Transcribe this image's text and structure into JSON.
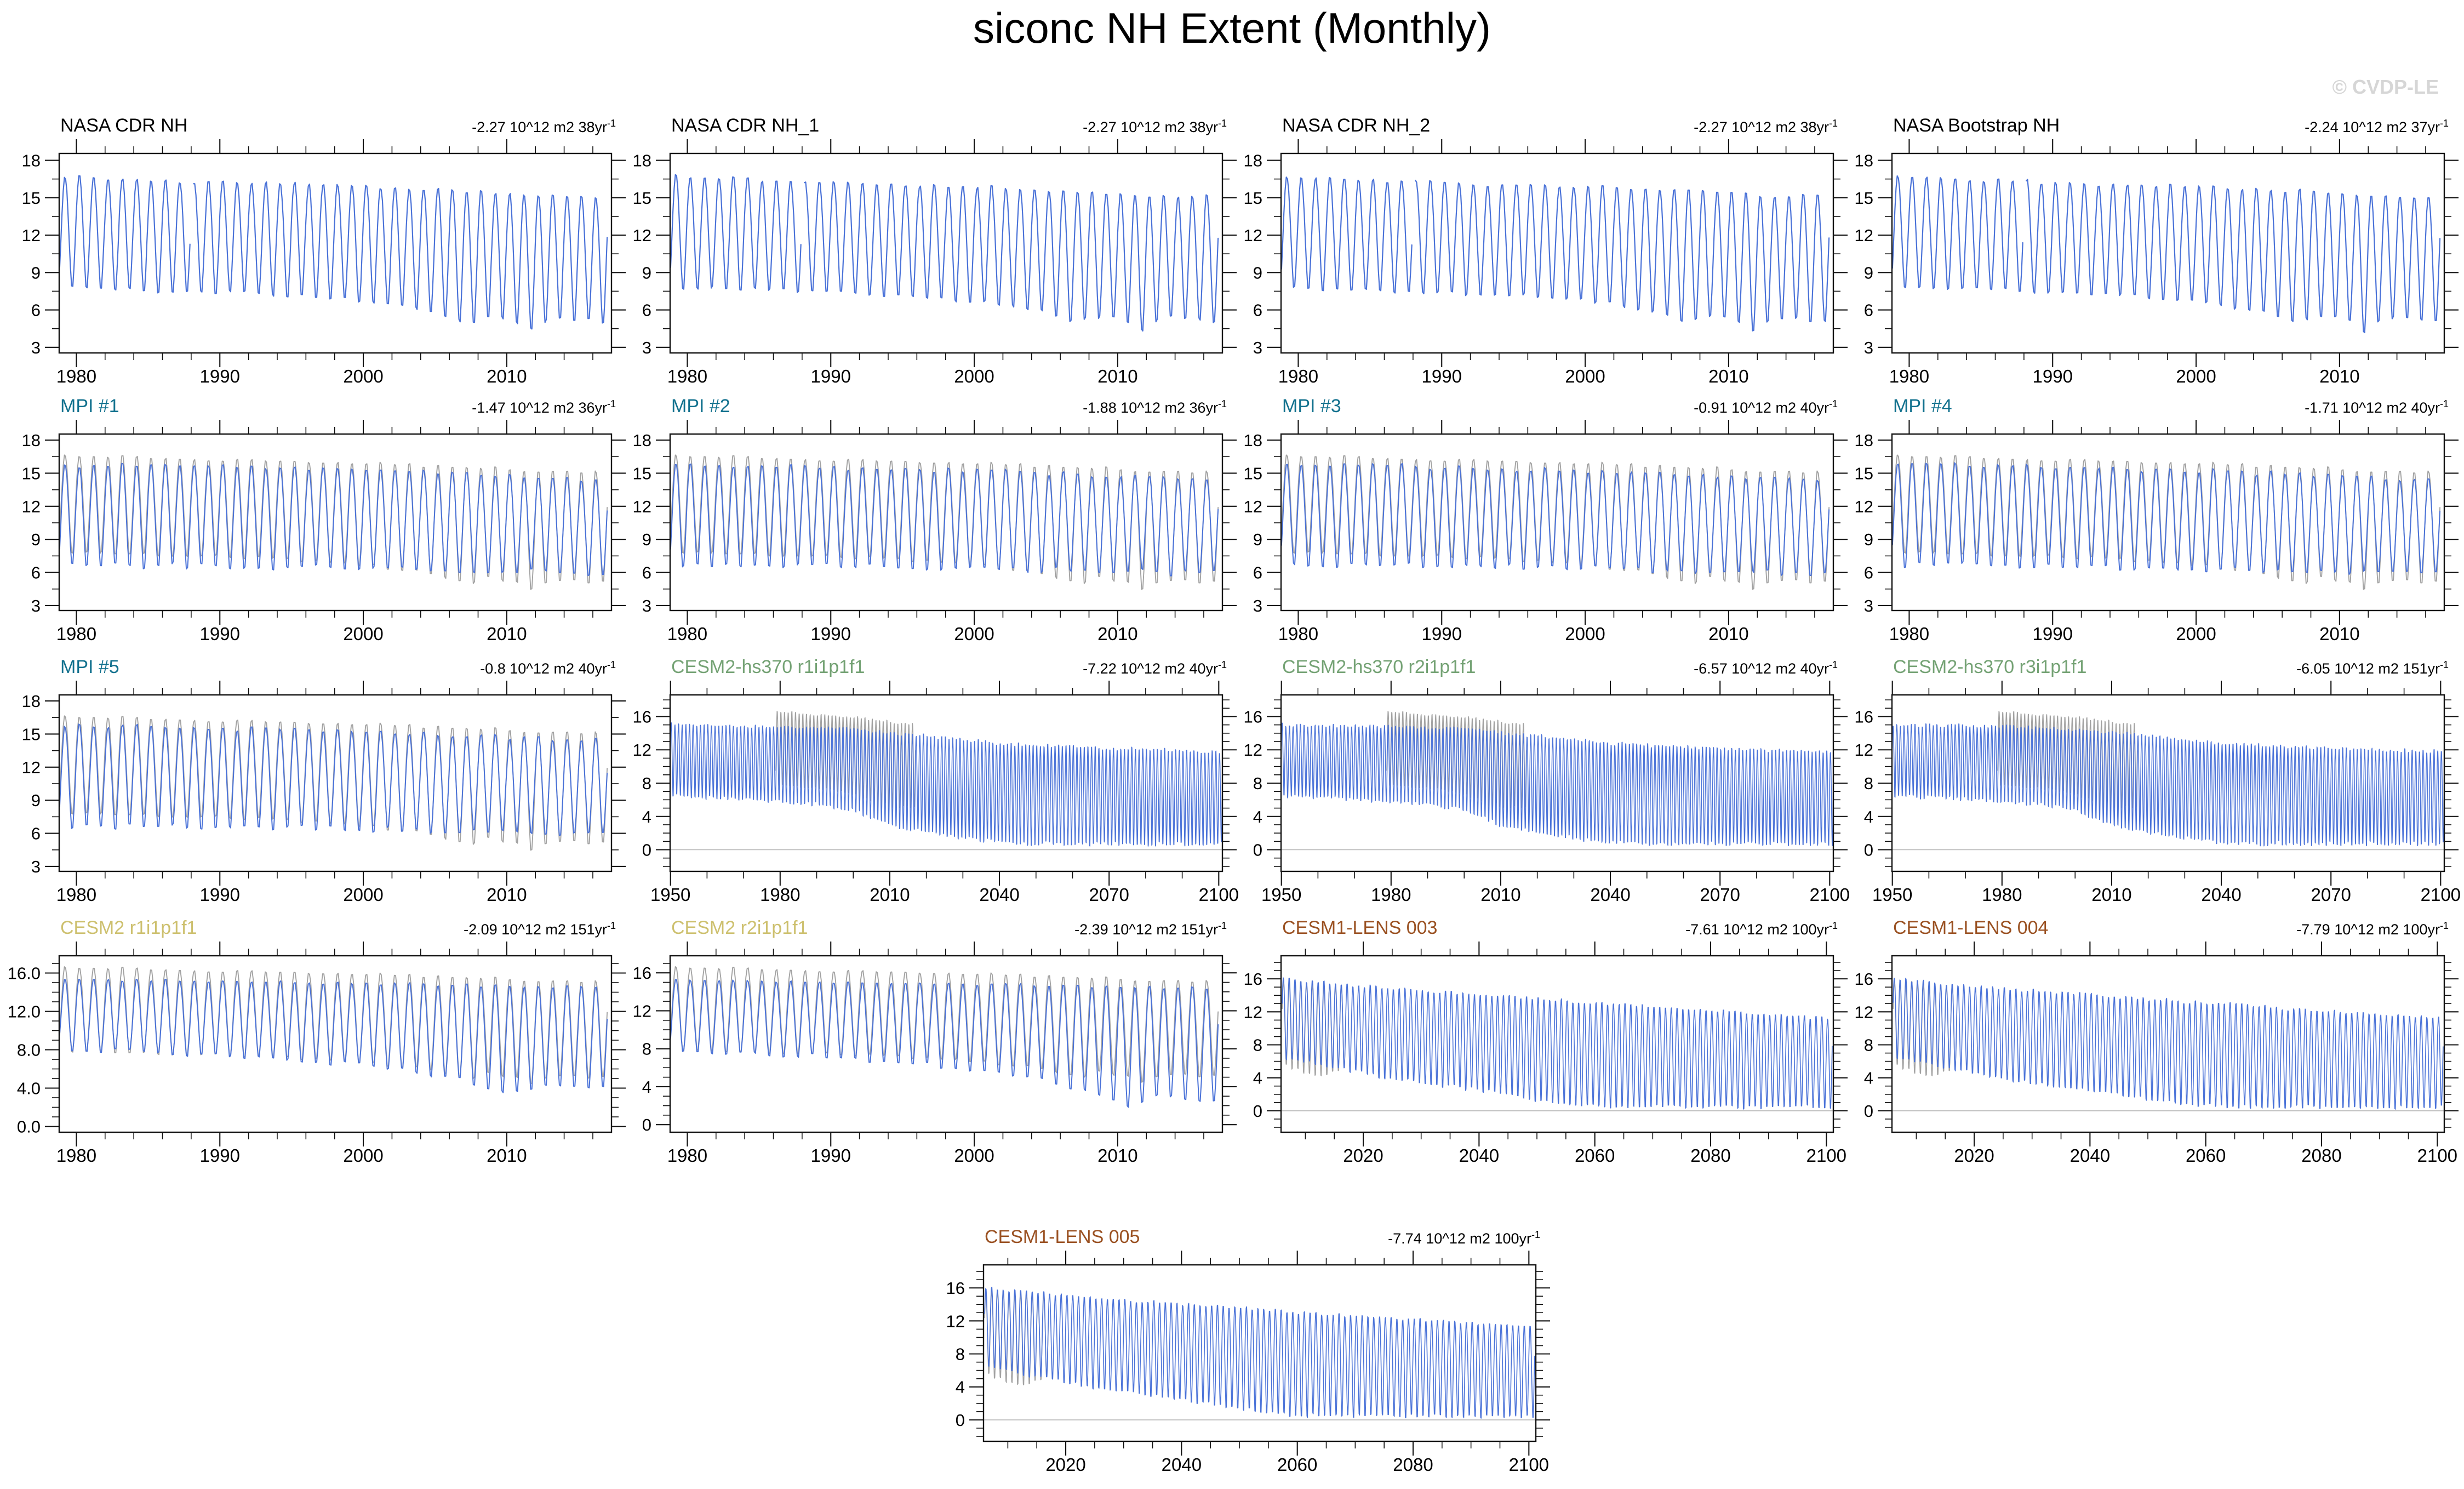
{
  "page": {
    "title": "siconc NH Extent (Monthly)",
    "watermark": "© CVDP-LE"
  },
  "colors": {
    "series_blue": "#4a72d8",
    "obs_gray": "#a2a2a2",
    "frame": "#111111",
    "tick": "#111111",
    "zero_line": "#b5b5b5",
    "nasa": "#000000",
    "mpi": "#12718e",
    "cesm2_hist": "#74a274",
    "cesm2": "#cdc06e",
    "cesm1": "#9a5122",
    "watermark": "#d6d6d6"
  },
  "axes": {
    "x38": {
      "min": 1978.8,
      "max": 2017.3,
      "majors": [
        1980,
        1990,
        2000,
        2010
      ],
      "labels": [
        "1980",
        "1990",
        "2000",
        "2010"
      ],
      "minor_step": 2
    },
    "xhs": {
      "min": 1949.9,
      "max": 2101.0,
      "majors": [
        1950,
        1980,
        2010,
        2040,
        2070,
        2100
      ],
      "labels": [
        "1950",
        "1980",
        "2010",
        "2040",
        "2070",
        "2100"
      ],
      "minor_step": 10
    },
    "xlens": {
      "min": 2005.8,
      "max": 2101.2,
      "majors": [
        2020,
        2040,
        2060,
        2080,
        2100
      ],
      "labels": [
        "2020",
        "2040",
        "2060",
        "2080",
        "2100"
      ],
      "minor_step": 5
    },
    "y318": {
      "min": 2.55,
      "max": 18.55,
      "majors": [
        3,
        6,
        9,
        12,
        15,
        18
      ],
      "labels": [
        "3",
        "6",
        "9",
        "12",
        "15",
        "18"
      ],
      "minor_step": 1.5
    },
    "y016": {
      "min": -2.6,
      "max": 18.6,
      "majors": [
        0,
        4,
        8,
        12,
        16
      ],
      "labels": [
        "0",
        "4",
        "8",
        "12",
        "16"
      ],
      "minor_step": 1
    },
    "y016d": {
      "min": -0.6,
      "max": 17.8,
      "majors": [
        0,
        4,
        8,
        12,
        16
      ],
      "labels": [
        "0.0",
        "4.0",
        "8.0",
        "12.0",
        "16.0"
      ],
      "minor_step": 1
    },
    "y016b": {
      "min": -0.8,
      "max": 17.8,
      "majors": [
        0,
        4,
        8,
        12,
        16
      ],
      "labels": [
        "0",
        "4",
        "8",
        "12",
        "16"
      ],
      "minor_step": 1
    },
    "y016l": {
      "min": -2.6,
      "max": 18.8,
      "majors": [
        0,
        4,
        8,
        12,
        16
      ],
      "labels": [
        "0",
        "4",
        "8",
        "12",
        "16"
      ],
      "minor_step": 1
    }
  },
  "envelopes": {
    "obs38": {
      "start": 1978.87,
      "end": 2017.0,
      "jmax": 0.25,
      "jmin": 0.3,
      "max": [
        [
          1978.9,
          16.8
        ],
        [
          1985,
          16.5
        ],
        [
          1995,
          16.15
        ],
        [
          2005,
          15.8
        ],
        [
          2012,
          15.3
        ],
        [
          2017,
          15.15
        ]
      ],
      "min": [
        [
          1978.9,
          7.5
        ],
        [
          1990,
          7.1
        ],
        [
          1996,
          6.8
        ],
        [
          2000,
          6.4
        ],
        [
          2005,
          5.5
        ],
        [
          2007,
          4.6
        ],
        [
          2009,
          5.2
        ],
        [
          2011,
          4.6
        ],
        [
          2012,
          3.7
        ],
        [
          2013,
          5.1
        ],
        [
          2014,
          5.0
        ],
        [
          2017,
          4.65
        ]
      ]
    },
    "mpi": {
      "start": 1978.87,
      "end": 2017.0,
      "jmax": 0.45,
      "jmin": 0.55,
      "max": [
        [
          1978.9,
          15.9
        ],
        [
          1995,
          15.5
        ],
        [
          2005,
          15.1
        ],
        [
          2017,
          14.4
        ]
      ],
      "min": [
        [
          1978.9,
          6.4
        ],
        [
          1995,
          6.2
        ],
        [
          2017,
          5.6
        ]
      ]
    },
    "hs370": {
      "start": 1950.04,
      "end": 2100.96,
      "jmax": 0.4,
      "jmin": 0.5,
      "clamp": 0.05,
      "max": [
        [
          1950,
          15.1
        ],
        [
          1980,
          14.9
        ],
        [
          2000,
          14.6
        ],
        [
          2015,
          14.0
        ],
        [
          2040,
          12.9
        ],
        [
          2070,
          12.3
        ],
        [
          2100,
          11.9
        ]
      ],
      "min": [
        [
          1950,
          6.2
        ],
        [
          1970,
          5.8
        ],
        [
          1990,
          5.2
        ],
        [
          2000,
          4.4
        ],
        [
          2010,
          2.6
        ],
        [
          2020,
          1.7
        ],
        [
          2035,
          0.7
        ],
        [
          2045,
          0.35
        ],
        [
          2100,
          0.3
        ]
      ]
    },
    "cesm2": {
      "start": 1978.87,
      "end": 2017.0,
      "jmax": 0.3,
      "jmin": 0.5,
      "max": [
        [
          1978.9,
          15.4
        ],
        [
          1995,
          15.15
        ],
        [
          2005,
          14.9
        ],
        [
          2017,
          14.6
        ]
      ],
      "min": [
        [
          1978.9,
          7.9
        ],
        [
          1990,
          7.2
        ],
        [
          2000,
          6.1
        ],
        [
          2007,
          4.4
        ],
        [
          2010,
          3.1
        ],
        [
          2013,
          4.2
        ],
        [
          2017,
          3.6
        ]
      ]
    },
    "cesm2b": {
      "start": 1978.87,
      "end": 2017.0,
      "jmax": 0.3,
      "jmin": 0.5,
      "max": [
        [
          1978.9,
          15.3
        ],
        [
          1995,
          15.0
        ],
        [
          2005,
          14.8
        ],
        [
          2017,
          14.5
        ]
      ],
      "min": [
        [
          1978.9,
          7.6
        ],
        [
          1990,
          6.9
        ],
        [
          1998,
          5.8
        ],
        [
          2004,
          4.6
        ],
        [
          2008,
          3.0
        ],
        [
          2011,
          1.4
        ],
        [
          2013,
          2.9
        ],
        [
          2017,
          1.9
        ]
      ]
    },
    "lens": {
      "start": 2006.04,
      "end": 2100.96,
      "jmax": 0.4,
      "jmin": 0.45,
      "clamp": 0.03,
      "max": [
        [
          2006,
          16.1
        ],
        [
          2020,
          15.2
        ],
        [
          2040,
          14.2
        ],
        [
          2060,
          13.2
        ],
        [
          2080,
          12.3
        ],
        [
          2100,
          11.4
        ]
      ],
      "min": [
        [
          2006,
          6.2
        ],
        [
          2015,
          4.9
        ],
        [
          2025,
          3.5
        ],
        [
          2040,
          2.1
        ],
        [
          2050,
          0.9
        ],
        [
          2058,
          0.2
        ],
        [
          2065,
          0.08
        ],
        [
          2100,
          0.06
        ]
      ]
    },
    "lens_obs": {
      "start": 2006.04,
      "end": 2016.99,
      "jmax": 0.25,
      "jmin": 0.35,
      "max": [
        [
          2006,
          15.8
        ],
        [
          2016,
          15.2
        ]
      ],
      "min": [
        [
          2006,
          5.3
        ],
        [
          2012,
          3.7
        ],
        [
          2016,
          4.7
        ]
      ]
    }
  },
  "chart_data": [
    {
      "type": "line",
      "title": "NASA CDR NH",
      "color": "nasa",
      "trend": "-2.27 10^12 m2 38yr",
      "trend_sup": "-1",
      "x": "x38",
      "y": "y318",
      "zero_line": false,
      "series": [
        {
          "color": "blue",
          "env": "obs38",
          "seed": 11,
          "lw": 2.2,
          "gap": [
            1987.92,
            1988.12
          ]
        }
      ]
    },
    {
      "type": "line",
      "title": "NASA CDR NH_1",
      "color": "nasa",
      "trend": "-2.27 10^12 m2 38yr",
      "trend_sup": "-1",
      "x": "x38",
      "y": "y318",
      "zero_line": false,
      "series": [
        {
          "color": "blue",
          "env": "obs38",
          "seed": 12,
          "lw": 2.2,
          "gap": [
            1987.92,
            1988.12
          ]
        }
      ]
    },
    {
      "type": "line",
      "title": "NASA CDR NH_2",
      "color": "nasa",
      "trend": "-2.27 10^12 m2 38yr",
      "trend_sup": "-1",
      "x": "x38",
      "y": "y318",
      "zero_line": false,
      "series": [
        {
          "color": "blue",
          "env": "obs38",
          "seed": 13,
          "lw": 2.2,
          "gap": [
            1987.92,
            1988.12
          ]
        }
      ]
    },
    {
      "type": "line",
      "title": "NASA Bootstrap NH",
      "color": "nasa",
      "trend": "-2.24 10^12 m2 37yr",
      "trend_sup": "-1",
      "x": "x38",
      "y": "y318",
      "zero_line": false,
      "series": [
        {
          "color": "blue",
          "env": "obs38",
          "seed": 14,
          "lw": 2.2,
          "gap": [
            1987.92,
            1988.12
          ]
        }
      ]
    },
    {
      "type": "line",
      "title": "MPI #1",
      "color": "mpi",
      "trend": "-1.47 10^12 m2 36yr",
      "trend_sup": "-1",
      "x": "x38",
      "y": "y318",
      "zero_line": false,
      "series": [
        {
          "color": "gray",
          "env": "obs38",
          "seed": 2,
          "lw": 1.9
        },
        {
          "color": "blue",
          "env": "mpi",
          "seed": 21,
          "lw": 2.0
        }
      ]
    },
    {
      "type": "line",
      "title": "MPI #2",
      "color": "mpi",
      "trend": "-1.88 10^12 m2 36yr",
      "trend_sup": "-1",
      "x": "x38",
      "y": "y318",
      "zero_line": false,
      "series": [
        {
          "color": "gray",
          "env": "obs38",
          "seed": 2,
          "lw": 1.9
        },
        {
          "color": "blue",
          "env": "mpi",
          "seed": 22,
          "lw": 2.0
        }
      ]
    },
    {
      "type": "line",
      "title": "MPI #3",
      "color": "mpi",
      "trend": "-0.91 10^12 m2 40yr",
      "trend_sup": "-1",
      "x": "x38",
      "y": "y318",
      "zero_line": false,
      "series": [
        {
          "color": "gray",
          "env": "obs38",
          "seed": 2,
          "lw": 1.9
        },
        {
          "color": "blue",
          "env": "mpi",
          "seed": 23,
          "lw": 2.0
        }
      ]
    },
    {
      "type": "line",
      "title": "MPI #4",
      "color": "mpi",
      "trend": "-1.71 10^12 m2 40yr",
      "trend_sup": "-1",
      "x": "x38",
      "y": "y318",
      "zero_line": false,
      "series": [
        {
          "color": "gray",
          "env": "obs38",
          "seed": 2,
          "lw": 1.9
        },
        {
          "color": "blue",
          "env": "mpi",
          "seed": 24,
          "lw": 2.0
        }
      ]
    },
    {
      "type": "line",
      "title": "MPI #5",
      "color": "mpi",
      "trend": "-0.8 10^12 m2 40yr",
      "trend_sup": "-1",
      "x": "x38",
      "y": "y318",
      "zero_line": false,
      "series": [
        {
          "color": "gray",
          "env": "obs38",
          "seed": 2,
          "lw": 1.9
        },
        {
          "color": "blue",
          "env": "mpi",
          "seed": 25,
          "lw": 2.0
        }
      ]
    },
    {
      "type": "line",
      "title": "CESM2-hs370 r1i1p1f1",
      "color": "cesm2_hist",
      "trend": "-7.22 10^12 m2 40yr",
      "trend_sup": "-1",
      "x": "xhs",
      "y": "y016",
      "zero_line": true,
      "series": [
        {
          "color": "gray",
          "env": "obs38",
          "seed": 2,
          "lw": 1.5
        },
        {
          "color": "blue",
          "env": "hs370",
          "seed": 31,
          "lw": 1.5
        }
      ]
    },
    {
      "type": "line",
      "title": "CESM2-hs370 r2i1p1f1",
      "color": "cesm2_hist",
      "trend": "-6.57 10^12 m2 40yr",
      "trend_sup": "-1",
      "x": "xhs",
      "y": "y016",
      "zero_line": true,
      "series": [
        {
          "color": "gray",
          "env": "obs38",
          "seed": 2,
          "lw": 1.5
        },
        {
          "color": "blue",
          "env": "hs370",
          "seed": 32,
          "lw": 1.5
        }
      ]
    },
    {
      "type": "line",
      "title": "CESM2-hs370 r3i1p1f1",
      "color": "cesm2_hist",
      "trend": "-6.05 10^12 m2 151yr",
      "trend_sup": "-1",
      "x": "xhs",
      "y": "y016",
      "zero_line": true,
      "series": [
        {
          "color": "gray",
          "env": "obs38",
          "seed": 2,
          "lw": 1.5
        },
        {
          "color": "blue",
          "env": "hs370",
          "seed": 33,
          "lw": 1.5
        }
      ]
    },
    {
      "type": "line",
      "title": "CESM2 r1i1p1f1",
      "color": "cesm2",
      "trend": "-2.09 10^12 m2 151yr",
      "trend_sup": "-1",
      "x": "x38",
      "y": "y016d",
      "zero_line": false,
      "series": [
        {
          "color": "gray",
          "env": "obs38",
          "seed": 2,
          "lw": 1.9
        },
        {
          "color": "blue",
          "env": "cesm2",
          "seed": 41,
          "lw": 2.0
        }
      ]
    },
    {
      "type": "line",
      "title": "CESM2 r2i1p1f1",
      "color": "cesm2",
      "trend": "-2.39 10^12 m2 151yr",
      "trend_sup": "-1",
      "x": "x38",
      "y": "y016b",
      "zero_line": false,
      "series": [
        {
          "color": "gray",
          "env": "obs38",
          "seed": 2,
          "lw": 1.9
        },
        {
          "color": "blue",
          "env": "cesm2b",
          "seed": 42,
          "lw": 2.0
        }
      ]
    },
    {
      "type": "line",
      "title": "CESM1-LENS 003",
      "color": "cesm1",
      "trend": "-7.61 10^12 m2 100yr",
      "trend_sup": "-1",
      "x": "xlens",
      "y": "y016l",
      "zero_line": true,
      "series": [
        {
          "color": "gray",
          "env": "lens_obs",
          "seed": 2,
          "lw": 1.6
        },
        {
          "color": "blue",
          "env": "lens",
          "seed": 51,
          "lw": 1.6
        }
      ]
    },
    {
      "type": "line",
      "title": "CESM1-LENS 004",
      "color": "cesm1",
      "trend": "-7.79 10^12 m2 100yr",
      "trend_sup": "-1",
      "x": "xlens",
      "y": "y016l",
      "zero_line": true,
      "series": [
        {
          "color": "gray",
          "env": "lens_obs",
          "seed": 2,
          "lw": 1.6
        },
        {
          "color": "blue",
          "env": "lens",
          "seed": 52,
          "lw": 1.6
        }
      ]
    },
    {
      "type": "line",
      "title": "CESM1-LENS 005",
      "color": "cesm1",
      "trend": "-7.74 10^12 m2 100yr",
      "trend_sup": "-1",
      "x": "xlens",
      "y": "y016l",
      "zero_line": true,
      "series": [
        {
          "color": "gray",
          "env": "lens_obs",
          "seed": 2,
          "lw": 1.6
        },
        {
          "color": "blue",
          "env": "lens",
          "seed": 53,
          "lw": 1.6
        }
      ]
    }
  ]
}
